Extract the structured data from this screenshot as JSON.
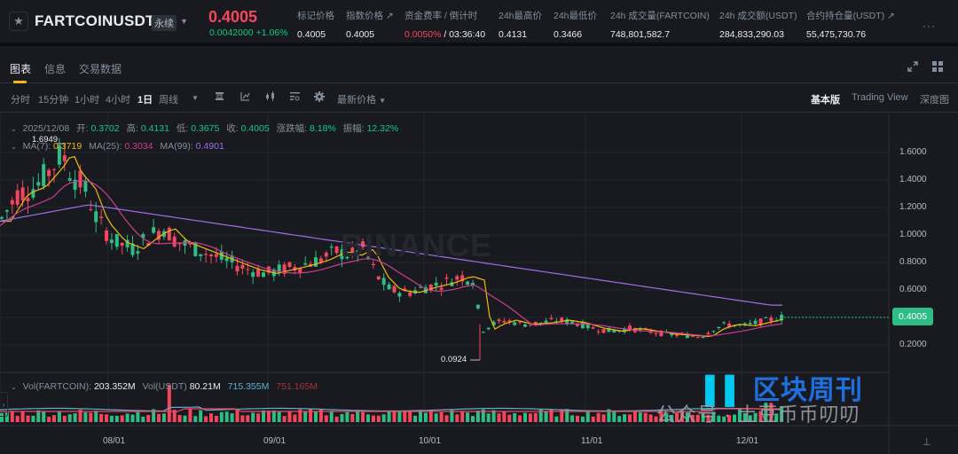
{
  "header": {
    "symbol": "FARTCOINUSDT",
    "contract_type": "永续",
    "last_price": "0.4005",
    "change_abs": "0.0042000",
    "change_pct": "+1.06%",
    "stats": [
      {
        "label": "标记价格",
        "value": "0.4005"
      },
      {
        "label": "指数价格 ↗",
        "value": "0.4005"
      },
      {
        "label": "资金费率 / 倒计时",
        "value_rate": "0.0050%",
        "value_sep": " / ",
        "value_countdown": "03:36:40"
      },
      {
        "label": "24h最高价",
        "value": "0.4131"
      },
      {
        "label": "24h最低价",
        "value": "0.3466"
      },
      {
        "label": "24h 成交量(FARTCOIN)",
        "value": "748,801,582.7"
      },
      {
        "label": "24h 成交额(USDT)",
        "value": "284,833,290.03"
      },
      {
        "label": "合约持仓量(USDT) ↗",
        "value": "55,475,730.76"
      }
    ],
    "more": "···"
  },
  "tabs": [
    {
      "label": "图表",
      "active": true
    },
    {
      "label": "信息",
      "active": false
    },
    {
      "label": "交易数据",
      "active": false
    }
  ],
  "toolbar": {
    "intervals": [
      "分时",
      "15分钟",
      "1小时",
      "4小时",
      "1日",
      "周线"
    ],
    "active_interval": "1日",
    "price_type": "最新价格",
    "views": [
      "基本版",
      "Trading View",
      "深度图"
    ],
    "active_view": "基本版"
  },
  "ohlc": {
    "date": "2025/12/08",
    "open_label": "开:",
    "open": "0.3702",
    "high_label": "高:",
    "high": "0.4131",
    "low_label": "低:",
    "low": "0.3675",
    "close_label": "收:",
    "close": "0.4005",
    "chg_label": "涨跌幅:",
    "chg": "8.18%",
    "amp_label": "振幅:",
    "amp": "12.32%"
  },
  "ma": {
    "ma7_label": "MA(7):",
    "ma7": "0.3719",
    "ma25_label": "MA(25):",
    "ma25": "0.3034",
    "ma99_label": "MA(99):",
    "ma99": "0.4901"
  },
  "volume": {
    "label1": "Vol(FARTCOIN):",
    "v1": "203.352M",
    "label2": "Vol(USDT)",
    "v2": "80.21M",
    "ma1": "715.355M",
    "ma2": "751.165M"
  },
  "chart": {
    "y_ticks": [
      "1.6000",
      "1.4000",
      "1.2000",
      "1.0000",
      "0.8000",
      "0.6000",
      "0.2000"
    ],
    "current_price_tag": "0.4005",
    "x_ticks": [
      "08/01",
      "09/01",
      "10/01",
      "11/01",
      "12/01"
    ],
    "high_annotation": "1.6949",
    "low_annotation": "0.0924",
    "watermark": "BINANCE",
    "colors": {
      "up": "#2ebd85",
      "down": "#f6465d",
      "ma7": "#f0b90b",
      "ma25": "#c93d8f",
      "ma99": "#9f6de8",
      "vol_ma1": "#5fb0d0",
      "vol_ma2": "#f6465d"
    }
  },
  "overlay": {
    "brand": "区块周刊",
    "wechat": "公众号 · 土豆币币叨叨"
  }
}
